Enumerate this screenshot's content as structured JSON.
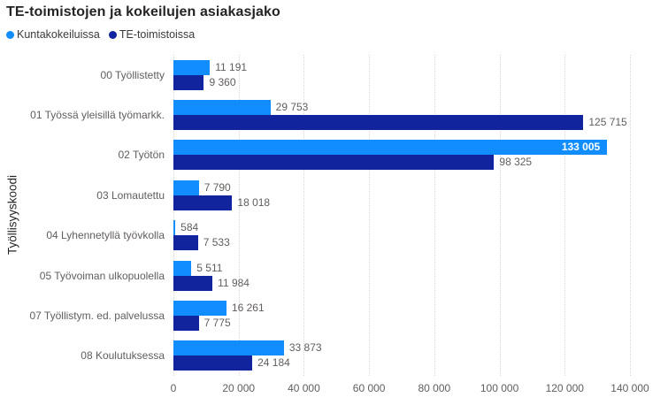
{
  "title": "TE-toimistojen ja kokeilujen asiakasjako",
  "legend": {
    "items": [
      {
        "label": "Kuntakokeiluissa",
        "color": "#118DFF"
      },
      {
        "label": "TE-toimistoissa",
        "color": "#12239E"
      }
    ]
  },
  "chart_data": {
    "type": "bar",
    "orientation": "horizontal",
    "title": "TE-toimistojen ja kokeilujen asiakasjako",
    "ylabel": "Työllisyyskoodi",
    "xlabel": "",
    "categories": [
      "00 Työllistetty",
      "01 Työssä yleisillä työmarkk.",
      "02 Työtön",
      "03 Lomautettu",
      "04 Lyhennetyllä työvkolla",
      "05 Työvoiman ulkopuolella",
      "07 Työllistym. ed. palvelussa",
      "08 Koulutuksessa"
    ],
    "series": [
      {
        "name": "Kuntakokeiluissa",
        "color": "#118DFF",
        "values": [
          11191,
          29753,
          133005,
          7790,
          584,
          5511,
          16261,
          33873
        ],
        "labels": [
          "11 191",
          "29 753",
          "133 005",
          "7 790",
          "584",
          "5 511",
          "16 261",
          "33 873"
        ]
      },
      {
        "name": "TE-toimistoissa",
        "color": "#12239E",
        "values": [
          9360,
          125715,
          98325,
          18018,
          7533,
          11984,
          7775,
          24184
        ],
        "labels": [
          "9 360",
          "125 715",
          "98 325",
          "18 018",
          "7 533",
          "11 984",
          "7 775",
          "24 184"
        ]
      }
    ],
    "xlim": [
      0,
      140000
    ],
    "x_ticks": [
      {
        "value": 0,
        "label": "0"
      },
      {
        "value": 20000,
        "label": "20 000"
      },
      {
        "value": 40000,
        "label": "40 000"
      },
      {
        "value": 60000,
        "label": "60 000"
      },
      {
        "value": 80000,
        "label": "80 000"
      },
      {
        "value": 100000,
        "label": "100 000"
      },
      {
        "value": 120000,
        "label": "120 000"
      },
      {
        "value": 140000,
        "label": "140 000"
      }
    ],
    "grid": "vertical-dotted",
    "legend_position": "top-left",
    "colors": {
      "series1": "#118DFF",
      "series2": "#12239E",
      "grid": "#d6d4d4",
      "tick_text": "#605E5C",
      "category_text": "#605E5C",
      "data_label_text": "#605E5C",
      "inside_label_text": "#FFFFFF",
      "title_text": "#252423",
      "background": "#FFFFFF"
    }
  }
}
